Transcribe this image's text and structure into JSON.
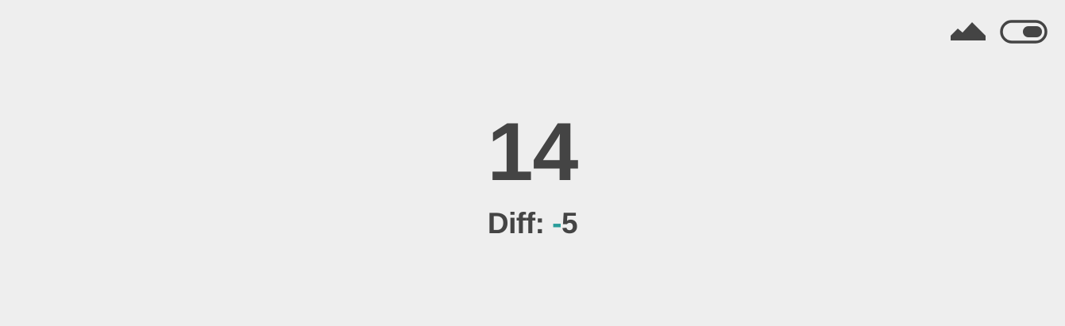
{
  "toolbar": {
    "chart_toggle_icon": "area-chart-icon",
    "mode_toggle_icon": "toggle-switch-icon",
    "mode_toggle_state": "on"
  },
  "metric": {
    "value": "14",
    "diff_label": "Diff:",
    "diff_sign": "-",
    "diff_value": "5"
  },
  "colors": {
    "background": "#eeeeee",
    "text": "#444444",
    "negative_accent": "#2a9d9a"
  }
}
